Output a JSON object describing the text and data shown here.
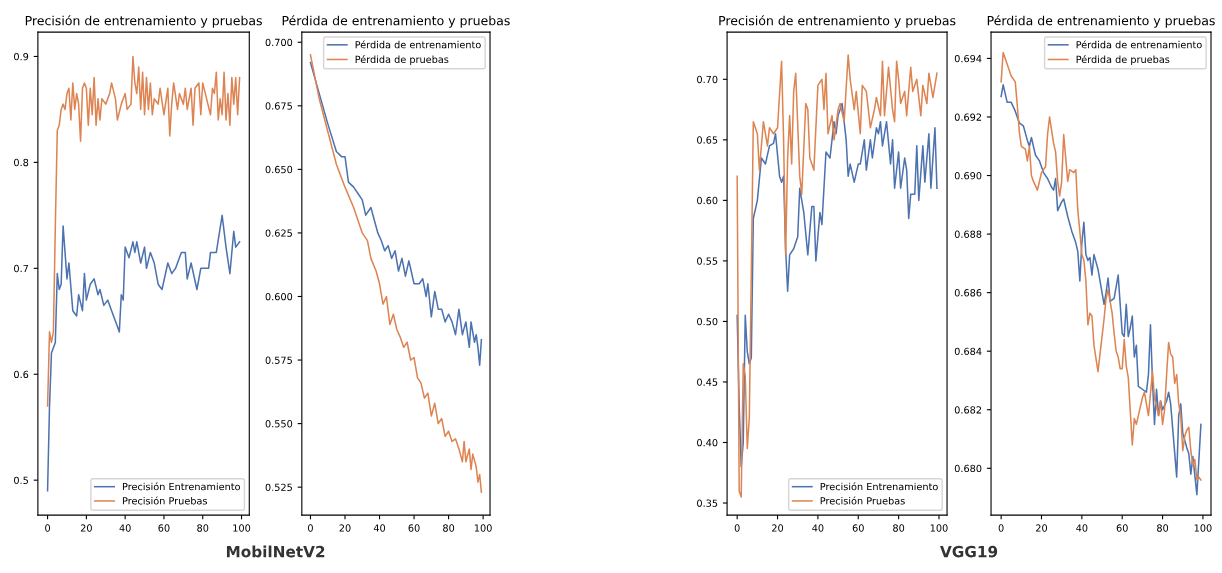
{
  "chart_data": [
    {
      "type": "line",
      "title": "Precisión de entrenamiento y pruebas",
      "annotations": [
        "MobilNetV2"
      ],
      "xlim": [
        -5,
        104
      ],
      "xticks": [
        0,
        20,
        40,
        60,
        80,
        100
      ],
      "ylim": [
        0.467,
        0.923
      ],
      "yticks": [
        0.5,
        0.6,
        0.7,
        0.8,
        0.9
      ],
      "legend": "bottom right",
      "series": [
        {
          "name": "Precisión Entrenamiento",
          "color": "#4c72b0",
          "x": [
            0,
            1,
            2,
            3,
            4,
            5,
            6,
            7,
            8,
            10,
            11,
            13,
            15,
            16,
            18,
            19,
            20,
            22,
            24,
            26,
            27,
            29,
            31,
            33,
            34,
            36,
            37,
            38,
            39,
            40,
            42,
            44,
            45,
            46,
            48,
            50,
            51,
            53,
            55,
            57,
            59,
            62,
            64,
            66,
            69,
            71,
            72,
            74,
            77,
            79,
            83,
            84,
            87,
            90,
            92,
            94,
            96,
            97,
            99
          ],
          "values": [
            0.49,
            0.57,
            0.62,
            0.625,
            0.63,
            0.695,
            0.68,
            0.685,
            0.74,
            0.69,
            0.705,
            0.66,
            0.655,
            0.675,
            0.66,
            0.695,
            0.67,
            0.685,
            0.69,
            0.675,
            0.68,
            0.665,
            0.67,
            0.66,
            0.655,
            0.645,
            0.64,
            0.675,
            0.67,
            0.72,
            0.71,
            0.725,
            0.715,
            0.725,
            0.705,
            0.72,
            0.7,
            0.715,
            0.705,
            0.685,
            0.68,
            0.705,
            0.695,
            0.7,
            0.715,
            0.715,
            0.69,
            0.705,
            0.68,
            0.7,
            0.7,
            0.715,
            0.715,
            0.75,
            0.72,
            0.695,
            0.735,
            0.72,
            0.725
          ]
        },
        {
          "name": "Precisión Pruebas",
          "color": "#dd8452",
          "x": [
            0,
            1,
            2,
            3,
            4,
            5,
            6,
            7,
            8,
            9,
            10,
            11,
            12,
            13,
            14,
            15,
            16,
            17,
            18,
            19,
            20,
            21,
            22,
            23,
            24,
            25,
            26,
            27,
            28,
            30,
            32,
            33,
            35,
            36,
            38,
            40,
            41,
            43,
            44,
            45,
            46,
            47,
            48,
            49,
            50,
            51,
            52,
            53,
            54,
            55,
            57,
            58,
            60,
            62,
            63,
            64,
            65,
            67,
            68,
            70,
            71,
            72,
            74,
            75,
            76,
            78,
            79,
            80,
            82,
            84,
            85,
            86,
            87,
            88,
            89,
            90,
            91,
            92,
            93,
            94,
            95,
            96,
            97,
            98,
            99
          ],
          "values": [
            0.57,
            0.64,
            0.63,
            0.64,
            0.74,
            0.83,
            0.835,
            0.85,
            0.855,
            0.85,
            0.865,
            0.87,
            0.84,
            0.875,
            0.85,
            0.865,
            0.855,
            0.82,
            0.87,
            0.875,
            0.87,
            0.835,
            0.87,
            0.845,
            0.88,
            0.835,
            0.86,
            0.84,
            0.86,
            0.855,
            0.865,
            0.875,
            0.86,
            0.84,
            0.855,
            0.865,
            0.85,
            0.855,
            0.9,
            0.875,
            0.865,
            0.89,
            0.85,
            0.885,
            0.845,
            0.88,
            0.85,
            0.875,
            0.845,
            0.86,
            0.855,
            0.87,
            0.845,
            0.87,
            0.825,
            0.855,
            0.875,
            0.85,
            0.865,
            0.855,
            0.87,
            0.85,
            0.87,
            0.835,
            0.87,
            0.875,
            0.845,
            0.875,
            0.86,
            0.845,
            0.87,
            0.865,
            0.885,
            0.84,
            0.86,
            0.845,
            0.885,
            0.84,
            0.865,
            0.835,
            0.88,
            0.855,
            0.88,
            0.845,
            0.88
          ]
        }
      ]
    },
    {
      "type": "line",
      "title": "Pérdida de entrenamiento y pruebas",
      "xlim": [
        -5,
        104
      ],
      "xticks": [
        0,
        20,
        40,
        60,
        80,
        100
      ],
      "ylim": [
        0.514,
        0.704
      ],
      "yticks": [
        {
          "value": 0.525,
          "label": "0.525"
        },
        {
          "value": 0.55,
          "label": "0.550"
        },
        {
          "value": 0.575,
          "label": "0.575"
        },
        {
          "value": 0.6,
          "label": "0.600"
        },
        {
          "value": 0.625,
          "label": "0.625"
        },
        {
          "value": 0.65,
          "label": "0.650"
        },
        {
          "value": 0.675,
          "label": "0.675"
        },
        {
          "value": 0.7,
          "label": "0.700"
        }
      ],
      "legend": "top right",
      "series": [
        {
          "name": "Pérdida de entrenamiento",
          "color": "#4c72b0",
          "x": [
            0,
            5,
            10,
            15,
            18,
            20,
            22,
            25,
            28,
            30,
            32,
            35,
            37,
            39,
            41,
            43,
            45,
            47,
            49,
            51,
            53,
            55,
            57,
            60,
            63,
            65,
            67,
            68,
            70,
            72,
            74,
            76,
            78,
            80,
            82,
            84,
            86,
            88,
            90,
            92,
            93,
            95,
            96,
            97,
            98,
            99
          ],
          "values": [
            0.692,
            0.68,
            0.668,
            0.657,
            0.655,
            0.655,
            0.645,
            0.643,
            0.64,
            0.638,
            0.632,
            0.635,
            0.63,
            0.625,
            0.622,
            0.618,
            0.62,
            0.615,
            0.618,
            0.61,
            0.615,
            0.608,
            0.614,
            0.605,
            0.605,
            0.607,
            0.6,
            0.605,
            0.592,
            0.602,
            0.595,
            0.595,
            0.59,
            0.593,
            0.59,
            0.585,
            0.595,
            0.585,
            0.59,
            0.58,
            0.59,
            0.582,
            0.585,
            0.58,
            0.573,
            0.583
          ]
        },
        {
          "name": "Pérdida de pruebas",
          "color": "#dd8452",
          "x": [
            0,
            5,
            10,
            15,
            20,
            25,
            30,
            33,
            35,
            38,
            40,
            42,
            44,
            46,
            48,
            50,
            52,
            54,
            56,
            58,
            60,
            62,
            64,
            66,
            68,
            70,
            72,
            74,
            76,
            78,
            80,
            82,
            84,
            86,
            88,
            89,
            90,
            92,
            93,
            94,
            96,
            97,
            98,
            99
          ],
          "values": [
            0.695,
            0.678,
            0.665,
            0.652,
            0.643,
            0.635,
            0.625,
            0.622,
            0.615,
            0.61,
            0.605,
            0.597,
            0.6,
            0.589,
            0.593,
            0.587,
            0.584,
            0.58,
            0.582,
            0.575,
            0.576,
            0.568,
            0.566,
            0.56,
            0.562,
            0.553,
            0.558,
            0.55,
            0.552,
            0.545,
            0.547,
            0.543,
            0.544,
            0.54,
            0.535,
            0.543,
            0.535,
            0.54,
            0.532,
            0.538,
            0.533,
            0.527,
            0.53,
            0.523
          ]
        }
      ]
    },
    {
      "type": "line",
      "title": "Precisión de entrenamiento y pruebas",
      "annotations": [
        "VGG19"
      ],
      "xlim": [
        -5,
        104
      ],
      "xticks": [
        0,
        20,
        40,
        60,
        80,
        100
      ],
      "ylim": [
        0.34,
        0.739
      ],
      "yticks": [
        {
          "value": 0.35,
          "label": "0.35"
        },
        {
          "value": 0.4,
          "label": "0.40"
        },
        {
          "value": 0.45,
          "label": "0.45"
        },
        {
          "value": 0.5,
          "label": "0.50"
        },
        {
          "value": 0.55,
          "label": "0.55"
        },
        {
          "value": 0.6,
          "label": "0.60"
        },
        {
          "value": 0.65,
          "label": "0.65"
        },
        {
          "value": 0.7,
          "label": "0.70"
        }
      ],
      "legend": "bottom right",
      "series": [
        {
          "name": "Precisión Entrenamiento",
          "color": "#4c72b0",
          "x": [
            0,
            1,
            2,
            3,
            4,
            5,
            6,
            7,
            8,
            10,
            12,
            14,
            16,
            18,
            19,
            21,
            22,
            23,
            24,
            25,
            26,
            28,
            30,
            31,
            33,
            35,
            37,
            38,
            39,
            41,
            42,
            44,
            46,
            48,
            49,
            50,
            52,
            54,
            55,
            56,
            58,
            60,
            61,
            63,
            64,
            66,
            67,
            69,
            70,
            71,
            72,
            74,
            76,
            77,
            78,
            80,
            81,
            83,
            84,
            85,
            86,
            88,
            89,
            90,
            92,
            93,
            95,
            96,
            98,
            99
          ],
          "values": [
            0.505,
            0.43,
            0.38,
            0.4,
            0.505,
            0.475,
            0.465,
            0.47,
            0.585,
            0.6,
            0.635,
            0.63,
            0.645,
            0.647,
            0.655,
            0.62,
            0.615,
            0.62,
            0.56,
            0.525,
            0.555,
            0.56,
            0.57,
            0.61,
            0.59,
            0.555,
            0.595,
            0.595,
            0.55,
            0.59,
            0.58,
            0.64,
            0.635,
            0.665,
            0.655,
            0.67,
            0.68,
            0.65,
            0.62,
            0.63,
            0.615,
            0.63,
            0.63,
            0.65,
            0.625,
            0.65,
            0.635,
            0.66,
            0.655,
            0.665,
            0.645,
            0.665,
            0.63,
            0.65,
            0.61,
            0.64,
            0.61,
            0.635,
            0.625,
            0.585,
            0.605,
            0.605,
            0.645,
            0.6,
            0.645,
            0.615,
            0.655,
            0.61,
            0.66,
            0.61
          ]
        },
        {
          "name": "Precisión Pruebas",
          "color": "#dd8452",
          "x": [
            0,
            1,
            2,
            3,
            4,
            5,
            6,
            7,
            8,
            10,
            11,
            13,
            15,
            16,
            18,
            20,
            22,
            23,
            24,
            25,
            26,
            27,
            28,
            29,
            31,
            32,
            34,
            35,
            36,
            38,
            40,
            42,
            43,
            44,
            45,
            47,
            48,
            50,
            51,
            53,
            55,
            56,
            58,
            59,
            61,
            62,
            64,
            66,
            68,
            69,
            71,
            72,
            73,
            75,
            77,
            78,
            79,
            80,
            81,
            83,
            84,
            86,
            87,
            89,
            91,
            92,
            94,
            95,
            97,
            99
          ],
          "values": [
            0.62,
            0.36,
            0.355,
            0.465,
            0.455,
            0.395,
            0.42,
            0.54,
            0.665,
            0.655,
            0.625,
            0.665,
            0.645,
            0.66,
            0.655,
            0.66,
            0.715,
            0.65,
            0.555,
            0.635,
            0.67,
            0.63,
            0.69,
            0.705,
            0.62,
            0.605,
            0.68,
            0.675,
            0.635,
            0.625,
            0.695,
            0.7,
            0.675,
            0.705,
            0.655,
            0.67,
            0.65,
            0.675,
            0.68,
            0.665,
            0.72,
            0.7,
            0.675,
            0.69,
            0.655,
            0.695,
            0.69,
            0.66,
            0.675,
            0.685,
            0.67,
            0.715,
            0.67,
            0.71,
            0.675,
            0.665,
            0.715,
            0.7,
            0.68,
            0.69,
            0.67,
            0.71,
            0.69,
            0.7,
            0.67,
            0.695,
            0.68,
            0.705,
            0.685,
            0.705
          ]
        }
      ]
    },
    {
      "type": "line",
      "title": "Pérdida de entrenamiento y pruebas",
      "xlim": [
        -5,
        104
      ],
      "xticks": [
        0,
        20,
        40,
        60,
        80,
        100
      ],
      "ylim": [
        0.6784,
        0.6949
      ],
      "yticks": [
        {
          "value": 0.68,
          "label": "0.680"
        },
        {
          "value": 0.682,
          "label": "0.682"
        },
        {
          "value": 0.684,
          "label": "0.684"
        },
        {
          "value": 0.686,
          "label": "0.686"
        },
        {
          "value": 0.688,
          "label": "0.688"
        },
        {
          "value": 0.69,
          "label": "0.690"
        },
        {
          "value": 0.692,
          "label": "0.692"
        },
        {
          "value": 0.694,
          "label": "0.694"
        }
      ],
      "legend": "top right",
      "series": [
        {
          "name": "Pérdida de entrenamiento",
          "color": "#4c72b0",
          "x": [
            0,
            1,
            3,
            5,
            7,
            9,
            11,
            13,
            14,
            15,
            17,
            19,
            21,
            23,
            25,
            26,
            27,
            28,
            30,
            31,
            33,
            35,
            37,
            38,
            39,
            40,
            41,
            42,
            43,
            44,
            45,
            46,
            48,
            50,
            51,
            52,
            53,
            54,
            56,
            58,
            60,
            61,
            62,
            63,
            64,
            65,
            66,
            67,
            68,
            70,
            72,
            73,
            74,
            75,
            76,
            77,
            78,
            79,
            80,
            82,
            83,
            84,
            87,
            88,
            89,
            90,
            92,
            93,
            94,
            95,
            97,
            99
          ],
          "values": [
            0.6927,
            0.6931,
            0.6925,
            0.6925,
            0.6922,
            0.6918,
            0.6917,
            0.6912,
            0.691,
            0.6913,
            0.6907,
            0.6905,
            0.6901,
            0.6899,
            0.6896,
            0.6895,
            0.6899,
            0.6888,
            0.6891,
            0.6892,
            0.6886,
            0.6881,
            0.6877,
            0.6874,
            0.6864,
            0.6877,
            0.6884,
            0.6873,
            0.6871,
            0.6872,
            0.6866,
            0.6873,
            0.6868,
            0.686,
            0.6856,
            0.686,
            0.6865,
            0.6857,
            0.6858,
            0.6866,
            0.6846,
            0.6845,
            0.6856,
            0.6845,
            0.6848,
            0.6852,
            0.6838,
            0.6842,
            0.6828,
            0.6827,
            0.6826,
            0.6832,
            0.6849,
            0.683,
            0.6815,
            0.6827,
            0.6818,
            0.6823,
            0.682,
            0.6823,
            0.6826,
            0.6822,
            0.6797,
            0.6818,
            0.6822,
            0.6812,
            0.6807,
            0.6805,
            0.6798,
            0.6804,
            0.6791,
            0.6815
          ]
        },
        {
          "name": "Pérdida de pruebas",
          "color": "#dd8452",
          "x": [
            0,
            1,
            3,
            5,
            7,
            8,
            9,
            10,
            12,
            13,
            14,
            15,
            16,
            18,
            20,
            22,
            23,
            24,
            26,
            27,
            28,
            29,
            30,
            31,
            33,
            34,
            36,
            37,
            38,
            39,
            40,
            41,
            42,
            43,
            44,
            45,
            46,
            48,
            50,
            51,
            52,
            53,
            54,
            55,
            56,
            57,
            58,
            59,
            60,
            61,
            62,
            63,
            65,
            66,
            67,
            68,
            69,
            70,
            71,
            72,
            73,
            75,
            76,
            77,
            78,
            79,
            80,
            81,
            82,
            83,
            84,
            85,
            86,
            87,
            88,
            89,
            90,
            91,
            92,
            93,
            94,
            95,
            96,
            97,
            98,
            99
          ],
          "values": [
            0.6932,
            0.6942,
            0.6938,
            0.6934,
            0.6932,
            0.6924,
            0.6915,
            0.691,
            0.6909,
            0.6905,
            0.691,
            0.69,
            0.6898,
            0.6895,
            0.6901,
            0.6903,
            0.6914,
            0.692,
            0.6911,
            0.6908,
            0.6898,
            0.6893,
            0.6898,
            0.6914,
            0.6898,
            0.6902,
            0.6901,
            0.6902,
            0.6888,
            0.6881,
            0.6873,
            0.6871,
            0.6864,
            0.6849,
            0.6853,
            0.6852,
            0.6842,
            0.6833,
            0.6845,
            0.6851,
            0.6858,
            0.6861,
            0.6857,
            0.6853,
            0.6846,
            0.684,
            0.6838,
            0.6834,
            0.6834,
            0.6844,
            0.6835,
            0.6831,
            0.6808,
            0.6817,
            0.6815,
            0.6818,
            0.6821,
            0.6824,
            0.6826,
            0.6822,
            0.6818,
            0.6833,
            0.6824,
            0.6821,
            0.6818,
            0.6823,
            0.6815,
            0.682,
            0.6832,
            0.6843,
            0.6839,
            0.6838,
            0.6829,
            0.6832,
            0.6822,
            0.6818,
            0.6806,
            0.6811,
            0.6813,
            0.6814,
            0.6806,
            0.6801,
            0.6803,
            0.6796,
            0.6797,
            0.6796
          ]
        }
      ]
    }
  ]
}
